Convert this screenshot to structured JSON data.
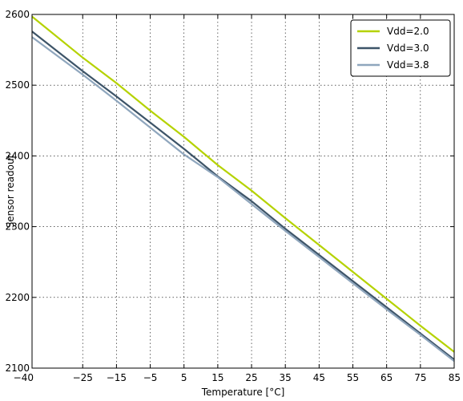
{
  "chart_data": {
    "type": "line",
    "title": "",
    "xlabel": "Temperature [°C]",
    "ylabel": "Sensor readout",
    "xlim": [
      -40,
      85
    ],
    "ylim": [
      2100,
      2600
    ],
    "xticks": [
      -40,
      -25,
      -15,
      -5,
      5,
      15,
      25,
      35,
      45,
      55,
      65,
      75,
      85
    ],
    "xtick_labels": [
      "−40",
      "−25",
      "−15",
      "−5",
      "5",
      "15",
      "25",
      "35",
      "45",
      "55",
      "65",
      "75",
      "85"
    ],
    "yticks": [
      2100,
      2200,
      2300,
      2400,
      2500,
      2600
    ],
    "ytick_labels": [
      "2100",
      "2200",
      "2300",
      "2400",
      "2500",
      "2600"
    ],
    "grid": true,
    "legend_position": "top-right",
    "series": [
      {
        "name": "Vdd=2.0",
        "color": "#b5d200",
        "x": [
          -40,
          -25,
          -15,
          -5,
          5,
          15,
          25,
          35,
          45,
          55,
          65,
          75,
          85
        ],
        "y": [
          2597,
          2539,
          2503,
          2464,
          2427,
          2387,
          2351,
          2312,
          2274,
          2236,
          2198,
          2160,
          2123
        ]
      },
      {
        "name": "Vdd=3.0",
        "color": "#3d5468",
        "x": [
          -40,
          -25,
          -15,
          -5,
          5,
          15,
          25,
          35,
          45,
          55,
          65,
          75,
          85
        ],
        "y": [
          2576,
          2520,
          2484,
          2447,
          2410,
          2371,
          2336,
          2297,
          2260,
          2223,
          2186,
          2149,
          2112
        ]
      },
      {
        "name": "Vdd=3.8",
        "color": "#8fa6bd",
        "x": [
          -40,
          -25,
          -15,
          -5,
          5,
          15,
          25,
          35,
          45,
          55,
          65,
          75,
          85
        ],
        "y": [
          2568,
          2515,
          2478,
          2440,
          2402,
          2370,
          2332,
          2294,
          2257,
          2220,
          2183,
          2147,
          2110
        ]
      }
    ]
  }
}
